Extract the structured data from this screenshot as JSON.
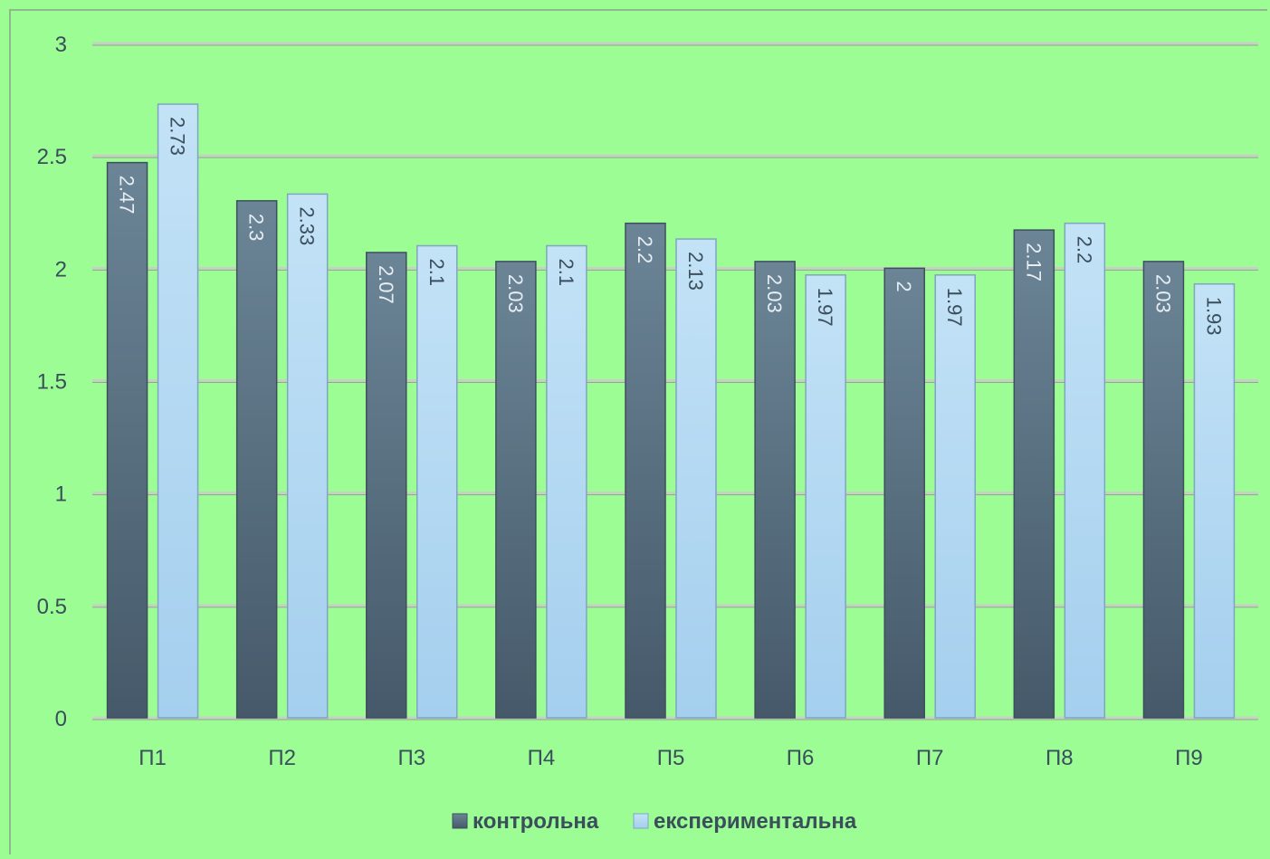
{
  "chart_data": {
    "type": "bar",
    "categories": [
      "П1",
      "П2",
      "П3",
      "П4",
      "П5",
      "П6",
      "П7",
      "П8",
      "П9"
    ],
    "series": [
      {
        "name": "контрольна",
        "values": [
          2.47,
          2.3,
          2.07,
          2.03,
          2.2,
          2.03,
          2,
          2.17,
          2.03
        ],
        "labels": [
          "2.47",
          "2.3",
          "2.07",
          "2.03",
          "2.2",
          "2.03",
          "2",
          "2.17",
          "2.03"
        ],
        "color": "#4f6677"
      },
      {
        "name": "експериментальна",
        "values": [
          2.73,
          2.33,
          2.1,
          2.1,
          2.13,
          1.97,
          1.97,
          2.2,
          1.93
        ],
        "labels": [
          "2.73",
          "2.33",
          "2.1",
          "2.1",
          "2.13",
          "1.97",
          "1.97",
          "2.2",
          "1.93"
        ],
        "color": "#aed6f1"
      }
    ],
    "yticks": [
      "0",
      "0.5",
      "1",
      "1.5",
      "2",
      "2.5",
      "3"
    ],
    "ylim": [
      0,
      3
    ],
    "grid": true,
    "legend_position": "bottom",
    "background": "#9cfd95"
  }
}
